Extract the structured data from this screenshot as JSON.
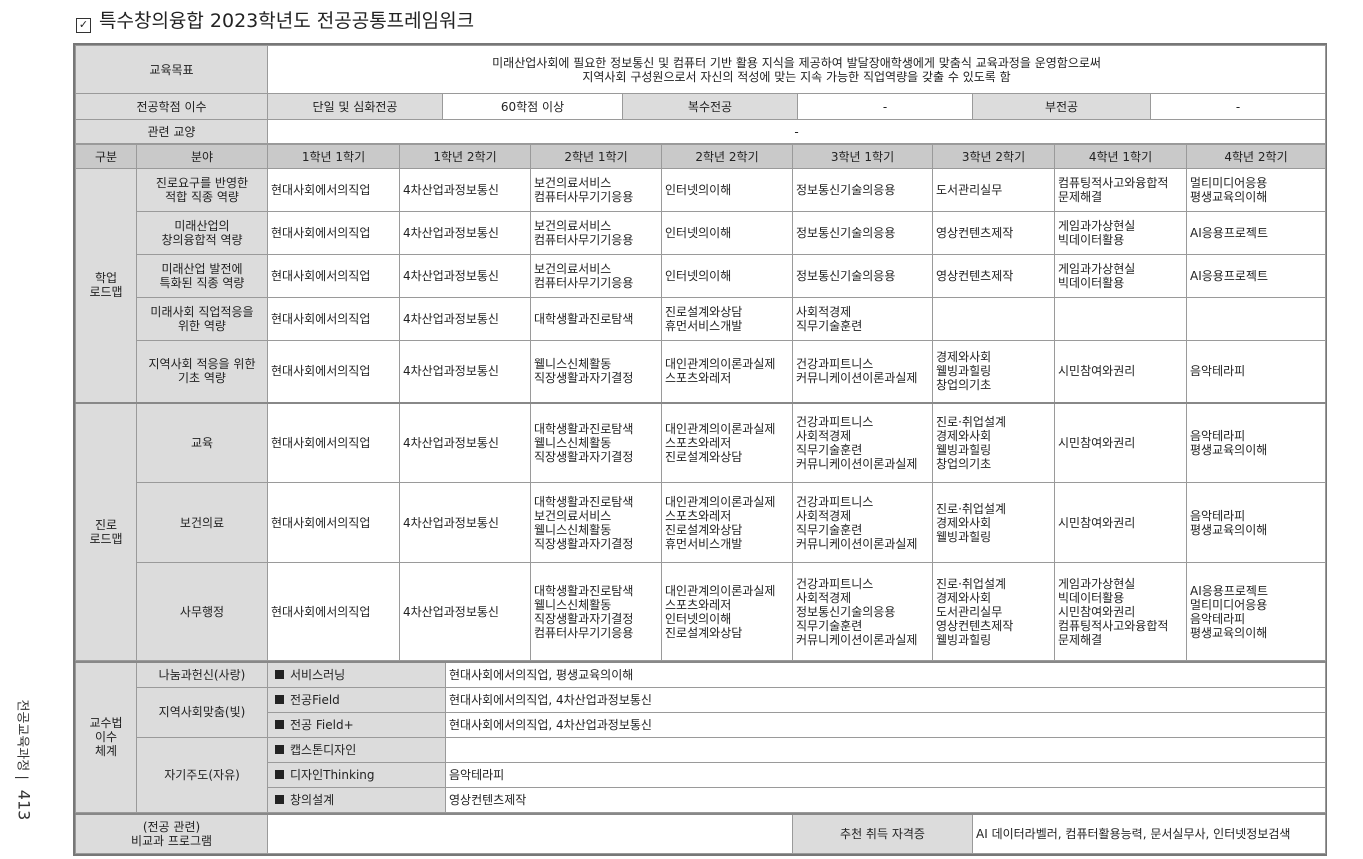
{
  "title": "특수창의융합 2023학년도 전공공통프레임워크",
  "side": {
    "label": "전공교육과정",
    "page": "413"
  },
  "goal": {
    "label": "교육목표",
    "text": "미래산업사회에 필요한 정보통신 및 컴퓨터 기반 활용 지식을 제공하여 발달장애학생에게 맞춤식 교육과정을 운영함으로써\n지역사회 구성원으로서 자신의 적성에 맞는 지속 가능한 직업역량을 갖출 수 있도록 함"
  },
  "credits": {
    "label": "전공학점 이수",
    "single_label": "단일 및 심화전공",
    "single_value": "60학점 이상",
    "double_label": "복수전공",
    "double_value": "-",
    "minor_label": "부전공",
    "minor_value": "-"
  },
  "liberal": {
    "label": "관련 교양",
    "value": "-"
  },
  "header": [
    "구분",
    "분야",
    "1학년 1학기",
    "1학년 2학기",
    "2학년 1학기",
    "2학년 2학기",
    "3학년 1학기",
    "3학년 2학기",
    "4학년 1학기",
    "4학년 2학기"
  ],
  "groups": [
    {
      "label": "학업\n로드맵",
      "rows": [
        {
          "field": "진로요구를 반영한\n적합 직종 역량",
          "cells": [
            "현대사회에서의직업",
            "4차산업과정보통신",
            "보건의료서비스\n컴퓨터사무기기응용",
            "인터넷의이해",
            "정보통신기술의응용",
            "도서관리실무",
            "컴퓨팅적사고와융합적\n문제해결",
            "멀티미디어응용\n평생교육의이해"
          ]
        },
        {
          "field": "미래산업의\n창의융합적 역량",
          "cells": [
            "현대사회에서의직업",
            "4차산업과정보통신",
            "보건의료서비스\n컴퓨터사무기기응용",
            "인터넷의이해",
            "정보통신기술의응용",
            "영상컨텐츠제작",
            "게임과가상현실\n빅데이터활용",
            "AI응용프로젝트"
          ]
        },
        {
          "field": "미래산업 발전에\n특화된 직종 역량",
          "cells": [
            "현대사회에서의직업",
            "4차산업과정보통신",
            "보건의료서비스\n컴퓨터사무기기응용",
            "인터넷의이해",
            "정보통신기술의응용",
            "영상컨텐츠제작",
            "게임과가상현실\n빅데이터활용",
            "AI응용프로젝트"
          ]
        },
        {
          "field": "미래사회 직업적응을\n위한 역량",
          "cells": [
            "현대사회에서의직업",
            "4차산업과정보통신",
            "대학생활과진로탐색",
            "진로설계와상담\n휴먼서비스개발",
            "사회적경제\n직무기술훈련",
            "",
            "",
            ""
          ]
        },
        {
          "field": "지역사회 적응을 위한\n기초 역량",
          "cells": [
            "현대사회에서의직업",
            "4차산업과정보통신",
            "웰니스신체활동\n직장생활과자기결정",
            "대인관계의이론과실제\n스포츠와레저",
            "건강과피트니스\n커뮤니케이션이론과실제",
            "경제와사회\n웰빙과힐링\n창업의기초",
            "시민참여와권리",
            "음악테라피"
          ]
        }
      ]
    },
    {
      "label": "진로\n로드맵",
      "rows": [
        {
          "field": "교육",
          "cells": [
            "현대사회에서의직업",
            "4차산업과정보통신",
            "대학생활과진로탐색\n웰니스신체활동\n직장생활과자기결정",
            "대인관계의이론과실제\n스포츠와레저\n진로설계와상담",
            "건강과피트니스\n사회적경제\n직무기술훈련\n커뮤니케이션이론과실제",
            "진로·취업설계\n경제와사회\n웰빙과힐링\n창업의기초",
            "시민참여와권리",
            "음악테라피\n평생교육의이해"
          ]
        },
        {
          "field": "보건의료",
          "cells": [
            "현대사회에서의직업",
            "4차산업과정보통신",
            "대학생활과진로탐색\n보건의료서비스\n웰니스신체활동\n직장생활과자기결정",
            "대인관계의이론과실제\n스포츠와레저\n진로설계와상담\n휴먼서비스개발",
            "건강과피트니스\n사회적경제\n직무기술훈련\n커뮤니케이션이론과실제",
            "진로·취업설계\n경제와사회\n웰빙과힐링",
            "시민참여와권리",
            "음악테라피\n평생교육의이해"
          ]
        },
        {
          "field": "사무행정",
          "cells": [
            "현대사회에서의직업",
            "4차산업과정보통신",
            "대학생활과진로탐색\n웰니스신체활동\n직장생활과자기결정\n컴퓨터사무기기응용",
            "대인관계의이론과실제\n스포츠와레저\n인터넷의이해\n진로설계와상담",
            "건강과피트니스\n사회적경제\n정보통신기술의응용\n직무기술훈련\n커뮤니케이션이론과실제",
            "진로·취업설계\n경제와사회\n도서관리실무\n영상컨텐츠제작\n웰빙과힐링",
            "게임과가상현실\n빅데이터활용\n시민참여와권리\n컴퓨팅적사고와융합적\n문제해결",
            "AI응용프로젝트\n멀티미디어응용\n음악테라피\n평생교육의이해"
          ]
        }
      ]
    }
  ],
  "pedagogy": {
    "label": "교수법\n이수\n체계",
    "subgroups": [
      {
        "label": "나눔과헌신(사랑)",
        "items": [
          {
            "method": "서비스러닝",
            "courses": "현대사회에서의직업, 평생교육의이해"
          }
        ]
      },
      {
        "label": "지역사회맞춤(빛)",
        "items": [
          {
            "method": "전공Field",
            "courses": "현대사회에서의직업, 4차산업과정보통신"
          },
          {
            "method": "전공 Field+",
            "courses": "현대사회에서의직업, 4차산업과정보통신"
          }
        ]
      },
      {
        "label": "자기주도(자유)",
        "items": [
          {
            "method": "캡스톤디자인",
            "courses": ""
          },
          {
            "method": "디자인Thinking",
            "courses": "음악테라피"
          },
          {
            "method": "창의설계",
            "courses": "영상컨텐츠제작"
          }
        ]
      }
    ]
  },
  "extra": {
    "label": "(전공 관련)\n비교과 프로그램",
    "value": "",
    "cert_label": "추천 취득 자격증",
    "cert_value": "AI 데이터라벨러, 컴퓨터활용능력, 문서실무사, 인터넷정보검색"
  }
}
